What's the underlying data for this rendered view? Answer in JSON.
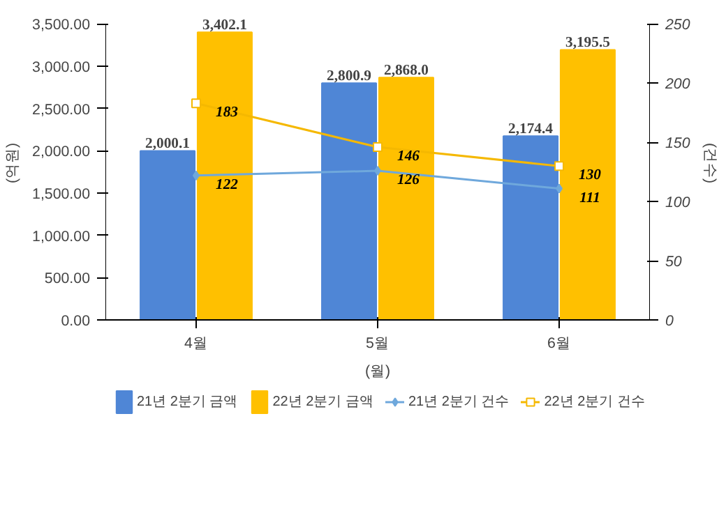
{
  "chart_data": {
    "type": "bar",
    "categories": [
      "4월",
      "5월",
      "6월"
    ],
    "xlabel": "(월)",
    "ylabel": "(억원)",
    "y2label": "(건수)",
    "ylim": [
      0,
      3500
    ],
    "yticks": [
      {
        "value": 0,
        "label": "0.00"
      },
      {
        "value": 500,
        "label": "500.00"
      },
      {
        "value": 1000,
        "label": "1,000.00"
      },
      {
        "value": 1500,
        "label": "1,500.00"
      },
      {
        "value": 2000,
        "label": "2,000.00"
      },
      {
        "value": 2500,
        "label": "2,500.00"
      },
      {
        "value": 3000,
        "label": "3,000.00"
      },
      {
        "value": 3500,
        "label": "3,500.00"
      }
    ],
    "y2lim": [
      0,
      250
    ],
    "y2ticks": [
      0,
      50,
      100,
      150,
      200,
      250
    ],
    "legend": "bottom",
    "series": [
      {
        "name": "21년 2분기 금액",
        "color": "#4f86d6",
        "values": [
          2000.1,
          2800.9,
          2174.4
        ],
        "value_labels": [
          "2,000.1",
          "2,800.9",
          "2,174.4"
        ]
      },
      {
        "name": "22년 2분기 금액",
        "color": "#ffc000",
        "values": [
          3402.1,
          2868.0,
          3195.5
        ],
        "value_labels": [
          "3,402.1",
          "2,868.0",
          "3,195.5"
        ]
      },
      {
        "name": "21년 2분기 건수",
        "type": "line",
        "axis": "y2",
        "marker": "diamond",
        "color": "#6fa8dc",
        "values": [
          122,
          126,
          111
        ],
        "value_labels": [
          "122",
          "126",
          "111"
        ]
      },
      {
        "name": "22년 2분기 건수",
        "type": "line",
        "axis": "y2",
        "marker": "square",
        "color": "#f5b800",
        "values": [
          183,
          146,
          130
        ],
        "value_labels": [
          "183",
          "146",
          "130"
        ]
      }
    ]
  }
}
